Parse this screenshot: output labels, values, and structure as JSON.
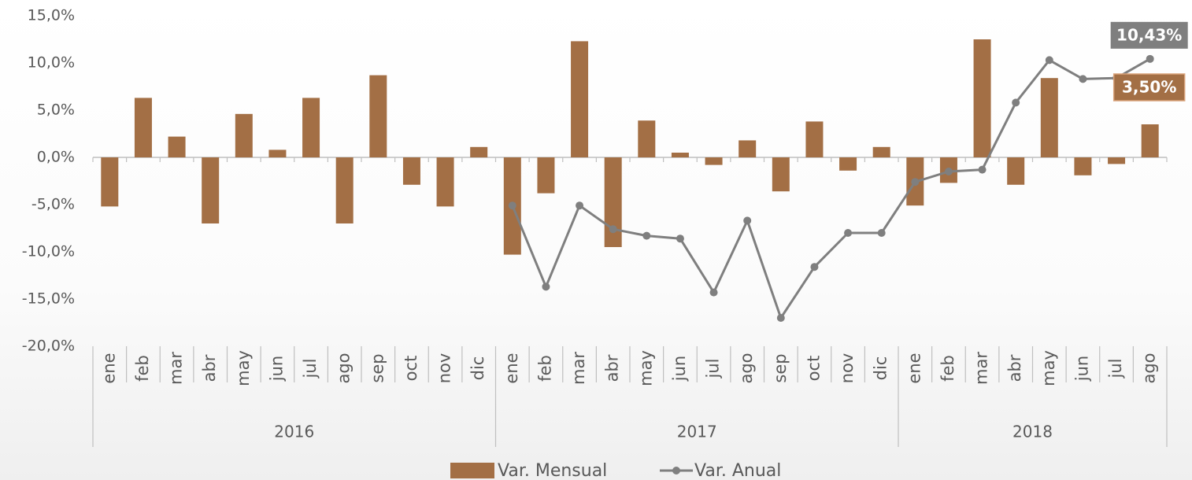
{
  "chart_data": {
    "type": "bar_line",
    "category_groups": [
      {
        "name": "2016",
        "categories": [
          "ene",
          "feb",
          "mar",
          "abr",
          "may",
          "jun",
          "jul",
          "ago",
          "sep",
          "oct",
          "nov",
          "dic"
        ]
      },
      {
        "name": "2017",
        "categories": [
          "ene",
          "feb",
          "mar",
          "abr",
          "may",
          "jun",
          "jul",
          "ago",
          "sep",
          "oct",
          "nov",
          "dic"
        ]
      },
      {
        "name": "2018",
        "categories": [
          "ene",
          "feb",
          "mar",
          "abr",
          "may",
          "jun",
          "jul",
          "ago"
        ]
      }
    ],
    "series": [
      {
        "name": "Var. Mensual",
        "type": "bar",
        "color": "#a36f45",
        "values": [
          -5.2,
          6.3,
          2.2,
          -7.0,
          4.6,
          0.8,
          6.3,
          -7.0,
          8.7,
          -2.9,
          -5.2,
          1.1,
          -10.3,
          -3.8,
          12.3,
          -9.5,
          3.9,
          0.5,
          -0.8,
          1.8,
          -3.6,
          3.8,
          -1.4,
          1.1,
          -5.1,
          -2.7,
          12.5,
          -2.9,
          8.4,
          -1.9,
          -0.7,
          3.5
        ],
        "value_labels": [
          null,
          null,
          null,
          null,
          null,
          null,
          null,
          null,
          null,
          null,
          null,
          null,
          null,
          null,
          null,
          null,
          null,
          null,
          null,
          null,
          null,
          null,
          null,
          null,
          null,
          null,
          null,
          null,
          null,
          null,
          null,
          "3,50%"
        ]
      },
      {
        "name": "Var. Anual",
        "type": "line",
        "color": "#7f7f7f",
        "values": [
          null,
          null,
          null,
          null,
          null,
          null,
          null,
          null,
          null,
          null,
          null,
          null,
          -5.1,
          -13.7,
          -5.1,
          -7.6,
          -8.3,
          -8.6,
          -14.3,
          -6.7,
          -17.0,
          -11.6,
          -8.0,
          -8.0,
          -2.6,
          -1.5,
          -1.3,
          5.8,
          10.3,
          8.3,
          8.4,
          10.43
        ],
        "value_labels": [
          null,
          null,
          null,
          null,
          null,
          null,
          null,
          null,
          null,
          null,
          null,
          null,
          null,
          null,
          null,
          null,
          null,
          null,
          null,
          null,
          null,
          null,
          null,
          null,
          null,
          null,
          null,
          null,
          null,
          null,
          null,
          "10,43%"
        ]
      }
    ],
    "ylim": [
      -20,
      15
    ],
    "yticks": [
      {
        "value": -20,
        "label": "-20,0%"
      },
      {
        "value": -15,
        "label": "-15,0%"
      },
      {
        "value": -10,
        "label": "-10,0%"
      },
      {
        "value": -5,
        "label": "-5,0%"
      },
      {
        "value": 0,
        "label": "0,0%"
      },
      {
        "value": 5,
        "label": "5,0%"
      },
      {
        "value": 10,
        "label": "10,0%"
      },
      {
        "value": 15,
        "label": "15,0%"
      }
    ],
    "grid": false,
    "legend": "bottom"
  }
}
